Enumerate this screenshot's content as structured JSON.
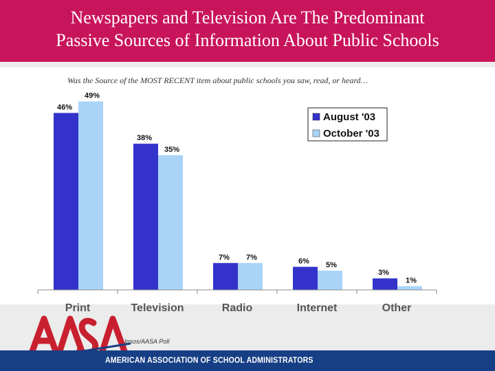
{
  "title": {
    "line1": "Newspapers and Television Are The Predominant",
    "line2": "Passive Sources of Information About Public Schools"
  },
  "subtitle": "Was the Source of the MOST RECENT item about public schools you saw, read, or heard…",
  "source_note": "Ipsos/AASA Poll",
  "footer": {
    "organization": "AMERICAN ASSOCIATION OF SCHOOL ADMINISTRATORS",
    "logo_text": "AASA"
  },
  "colors": {
    "title_band": "#c8145a",
    "footer_bar": "#173f85",
    "series_august": "#3333cc",
    "series_october": "#a9d4f8",
    "logo": "#c8202f"
  },
  "chart_data": {
    "type": "bar",
    "categories": [
      "Print",
      "Television",
      "Radio",
      "Internet",
      "Other"
    ],
    "series": [
      {
        "name": "August '03",
        "values": [
          46,
          38,
          7,
          6,
          3
        ],
        "labels": [
          "46%",
          "38%",
          "7%",
          "6%",
          "3%"
        ],
        "color": "#3333cc"
      },
      {
        "name": "October '03",
        "values": [
          49,
          35,
          7,
          5,
          1
        ],
        "labels": [
          "49%",
          "35%",
          "7%",
          "5%",
          "1%"
        ],
        "color": "#a9d4f8"
      }
    ],
    "ylim": [
      0,
      50
    ],
    "grid": false,
    "legend_position": "top-right",
    "xlabel": "",
    "ylabel": ""
  }
}
